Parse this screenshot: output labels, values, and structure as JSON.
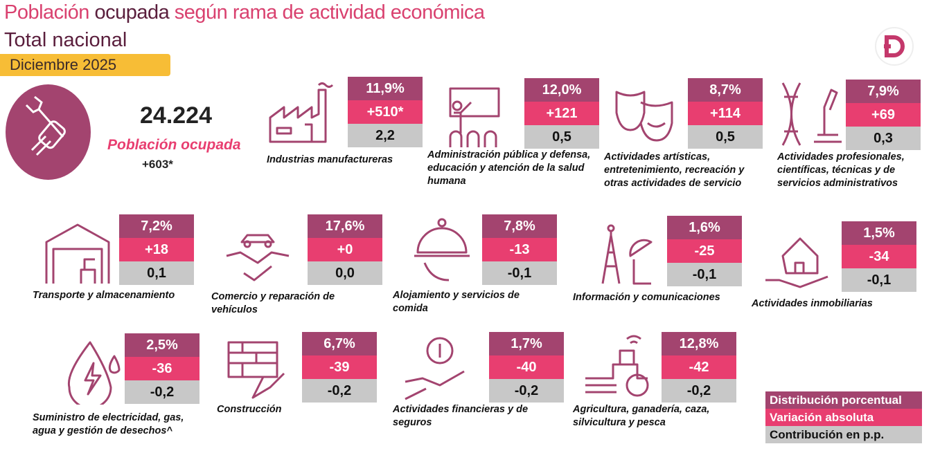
{
  "title": {
    "part1": "Población",
    "part2": "ocupada",
    "part3": "según rama de actividad económica",
    "subtitle": "Total nacional",
    "period": "Diciembre 2025"
  },
  "total": {
    "value": "24.224",
    "label": "Población ocupada",
    "variation": "+603*"
  },
  "colors": {
    "distribution": "#a3446f",
    "variation": "#e83e70",
    "contribution": "#c8c8c8",
    "title_pink": "#d9416f",
    "title_dark": "#5a1e3c",
    "period_bg": "#f7bd36"
  },
  "sectors": [
    {
      "name": "Industrias manufactureras",
      "dist": "11,9%",
      "var": "+510*",
      "contrib": "2,2",
      "icon": "factory-icon"
    },
    {
      "name": "Administración pública y defensa, educación y atención de la salud humana",
      "dist": "12,0%",
      "var": "+121",
      "contrib": "0,5",
      "icon": "teacher-icon"
    },
    {
      "name": "Actividades artísticas, entretenimiento, recreación y otras actividades de servicio",
      "dist": "8,7%",
      "var": "+114",
      "contrib": "0,5",
      "icon": "theater-masks-icon"
    },
    {
      "name": "Actividades profesionales, científicas, técnicas y de servicios administrativos",
      "dist": "7,9%",
      "var": "+69",
      "contrib": "0,3",
      "icon": "dna-microscope-icon"
    },
    {
      "name": "Transporte y almacenamiento",
      "dist": "7,2%",
      "var": "+18",
      "contrib": "0,1",
      "icon": "warehouse-icon"
    },
    {
      "name": "Comercio y reparación de vehículos",
      "dist": "17,6%",
      "var": "+0",
      "contrib": "0,0",
      "icon": "handshake-car-icon"
    },
    {
      "name": "Alojamiento y servicios de comida",
      "dist": "7,8%",
      "var": "-13",
      "contrib": "-0,1",
      "icon": "cloche-icon"
    },
    {
      "name": "Información y comunicaciones",
      "dist": "1,6%",
      "var": "-25",
      "contrib": "-0,1",
      "icon": "antenna-icon"
    },
    {
      "name": "Actividades inmobiliarias",
      "dist": "1,5%",
      "var": "-34",
      "contrib": "-0,1",
      "icon": "house-hand-icon"
    },
    {
      "name": "Suministro de electricidad, gas, agua y gestión de desechos^",
      "dist": "2,5%",
      "var": "-36",
      "contrib": "-0,2",
      "icon": "water-energy-icon"
    },
    {
      "name": "Construcción",
      "dist": "6,7%",
      "var": "-39",
      "contrib": "-0,2",
      "icon": "brick-trowel-icon"
    },
    {
      "name": "Actividades financieras y de seguros",
      "dist": "1,7%",
      "var": "-40",
      "contrib": "-0,2",
      "icon": "money-hand-icon"
    },
    {
      "name": "Agricultura, ganadería, caza, silvicultura y pesca",
      "dist": "12,8%",
      "var": "-42",
      "contrib": "-0,2",
      "icon": "tractor-icon"
    }
  ],
  "legend": {
    "distribution": "Distribución porcentual",
    "variation": "Variación absoluta",
    "contribution": "Contribución en p.p."
  }
}
